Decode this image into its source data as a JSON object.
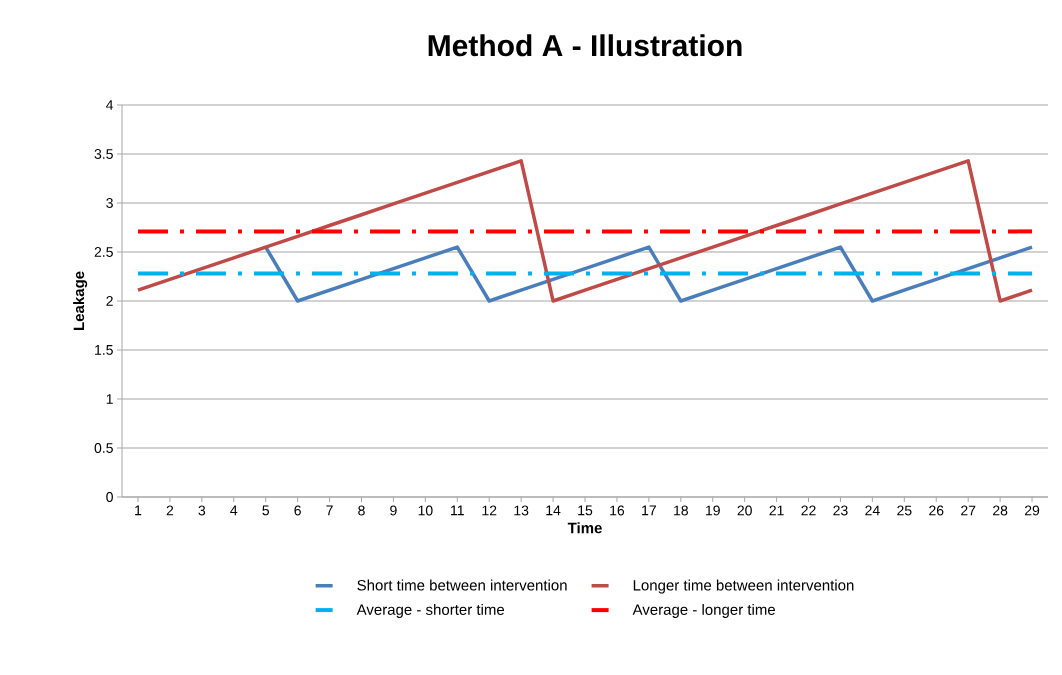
{
  "chart_data": {
    "type": "line",
    "title": "Method A - Illustration",
    "xlabel": "Time",
    "ylabel": "Leakage",
    "categories": [
      "1",
      "2",
      "3",
      "4",
      "5",
      "6",
      "7",
      "8",
      "9",
      "10",
      "11",
      "12",
      "13",
      "14",
      "15",
      "16",
      "17",
      "18",
      "19",
      "20",
      "21",
      "22",
      "23",
      "24",
      "25",
      "26",
      "27",
      "28",
      "29"
    ],
    "series": [
      {
        "name": "Short time between intervention",
        "color": "#4a7ebb",
        "line_style": "solid",
        "values": [
          null,
          null,
          null,
          null,
          2.55,
          2.0,
          2.11,
          2.22,
          2.33,
          2.44,
          2.55,
          2.0,
          2.11,
          2.22,
          2.33,
          2.44,
          2.55,
          2.0,
          2.11,
          2.22,
          2.33,
          2.44,
          2.55,
          2.0,
          2.11,
          2.22,
          2.33,
          2.44,
          2.55
        ]
      },
      {
        "name": "Longer time between intervention",
        "color": "#be4b48",
        "line_style": "solid",
        "values": [
          2.11,
          2.22,
          2.33,
          2.44,
          2.55,
          2.66,
          2.77,
          2.88,
          2.99,
          3.1,
          3.21,
          3.32,
          3.43,
          2.0,
          2.11,
          2.22,
          2.33,
          2.44,
          2.55,
          2.66,
          2.77,
          2.88,
          2.99,
          3.1,
          3.21,
          3.32,
          3.43,
          2.0,
          2.11
        ]
      },
      {
        "name": "Average - shorter time",
        "color": "#00b0f0",
        "line_style": "dashed",
        "values": [
          2.28,
          2.28,
          2.28,
          2.28,
          2.28,
          2.28,
          2.28,
          2.28,
          2.28,
          2.28,
          2.28,
          2.28,
          2.28,
          2.28,
          2.28,
          2.28,
          2.28,
          2.28,
          2.28,
          2.28,
          2.28,
          2.28,
          2.28,
          2.28,
          2.28,
          2.28,
          2.28,
          2.28,
          2.28
        ]
      },
      {
        "name": "Average - longer time",
        "color": "#ff0000",
        "line_style": "dashed",
        "values": [
          2.71,
          2.71,
          2.71,
          2.71,
          2.71,
          2.71,
          2.71,
          2.71,
          2.71,
          2.71,
          2.71,
          2.71,
          2.71,
          2.71,
          2.71,
          2.71,
          2.71,
          2.71,
          2.71,
          2.71,
          2.71,
          2.71,
          2.71,
          2.71,
          2.71,
          2.71,
          2.71,
          2.71,
          2.71
        ]
      }
    ],
    "ylim": [
      0,
      4
    ],
    "yticks": [
      0,
      0.5,
      1,
      1.5,
      2,
      2.5,
      3,
      3.5,
      4
    ],
    "grid": "y",
    "legend": "bottom",
    "marker": "none"
  }
}
